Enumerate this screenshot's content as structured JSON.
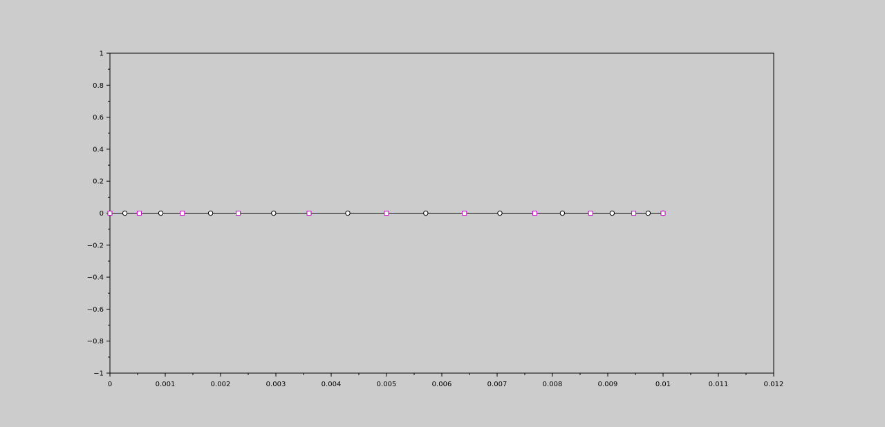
{
  "chart_data": {
    "type": "scatter",
    "title": "",
    "xlabel": "",
    "ylabel": "",
    "xlim": [
      0,
      0.012
    ],
    "ylim": [
      -1,
      1
    ],
    "grid": false,
    "x_ticks": [
      0,
      0.001,
      0.002,
      0.003,
      0.004,
      0.005,
      0.006,
      0.007,
      0.008,
      0.009,
      0.01,
      0.011,
      0.012
    ],
    "x_tick_labels": [
      "0",
      "0.001",
      "0.002",
      "0.003",
      "0.004",
      "0.005",
      "0.006",
      "0.007",
      "0.008",
      "0.009",
      "0.01",
      "0.011",
      "0.012"
    ],
    "y_ticks": [
      -1,
      -0.8,
      -0.6,
      -0.4,
      -0.2,
      0,
      0.2,
      0.4,
      0.6,
      0.8,
      1
    ],
    "y_tick_labels": [
      "−1",
      "−0.8",
      "−0.6",
      "−0.4",
      "−0.2",
      "0",
      "0.2",
      "0.4",
      "0.6",
      "0.8",
      "1"
    ],
    "line": {
      "x": [
        0,
        0.01
      ],
      "y": [
        0,
        0
      ],
      "color": "#000000"
    },
    "series": [
      {
        "marker": "circle",
        "color": "#000000",
        "fill": "#ffffff",
        "x": [
          0.0,
          0.00027,
          0.00092,
          0.00182,
          0.00296,
          0.0043,
          0.00571,
          0.00705,
          0.00818,
          0.00908,
          0.00973,
          0.01
        ],
        "y": [
          0,
          0,
          0,
          0,
          0,
          0,
          0,
          0,
          0,
          0,
          0,
          0
        ]
      },
      {
        "marker": "square",
        "color": "#cc00cc",
        "fill": "#ffffff",
        "x": [
          0.0,
          0.00053,
          0.00131,
          0.00232,
          0.0036,
          0.005,
          0.00641,
          0.00768,
          0.00869,
          0.00947,
          0.01
        ],
        "y": [
          0,
          0,
          0,
          0,
          0,
          0,
          0,
          0,
          0,
          0,
          0
        ]
      }
    ]
  }
}
